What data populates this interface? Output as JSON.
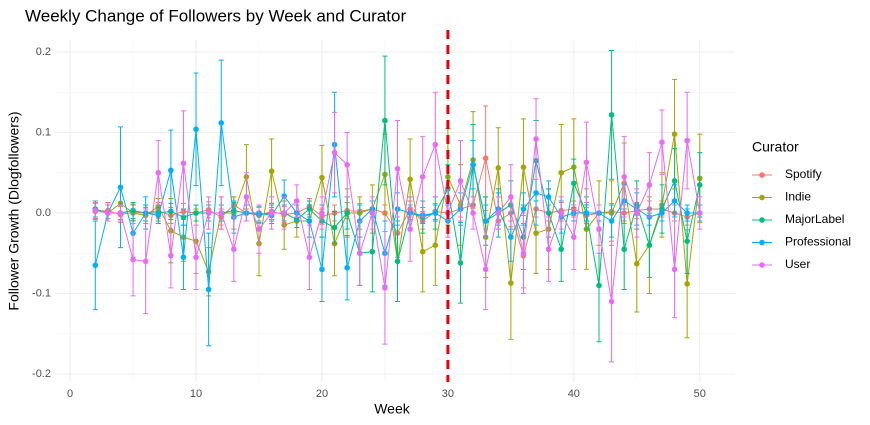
{
  "chart_data": {
    "type": "line",
    "title": "Weekly Change of Followers by Week and Curator",
    "xlabel": "Week",
    "ylabel": "Follower Growth (Dlogfollowers)",
    "legend_title": "Curator",
    "legend": "right",
    "grid": true,
    "vline": 30,
    "vline_color": "#e8000b",
    "xlim": [
      -1.2,
      52.8
    ],
    "ylim": [
      -0.21,
      0.215
    ],
    "xticks": [
      0,
      10,
      20,
      30,
      40,
      50
    ],
    "yticks": [
      -0.2,
      -0.1,
      {
        "value": 0,
        "label": "0.0"
      },
      0.1,
      0.2
    ],
    "x": [
      2,
      3,
      4,
      5,
      6,
      7,
      8,
      9,
      10,
      11,
      12,
      13,
      14,
      15,
      16,
      17,
      18,
      19,
      20,
      21,
      22,
      23,
      24,
      25,
      26,
      27,
      28,
      29,
      30,
      31,
      32,
      33,
      34,
      35,
      36,
      37,
      38,
      39,
      40,
      41,
      42,
      43,
      44,
      45,
      46,
      47,
      48,
      49,
      50
    ],
    "series": [
      {
        "name": "Spotify",
        "color": "#F8766D",
        "values": [
          0.002,
          0.003,
          -0.002,
          0.001,
          0.0,
          0.003,
          -0.003,
          0.002,
          0.0,
          0.004,
          -0.005,
          0.01,
          0.0,
          -0.003,
          0.002,
          -0.002,
          0.0,
          0.008,
          -0.004,
          0.0,
          0.003,
          0.002,
          0.005,
          0.0,
          -0.025,
          0.005,
          -0.01,
          0.002,
          0.0,
          0.005,
          0.01,
          0.068,
          -0.01,
          0.0,
          -0.053,
          0.005,
          0.0,
          0.003,
          0.005,
          -0.003,
          0.0,
          0.002,
          0.0,
          0.003,
          0.005,
          0.005,
          0.0,
          -0.005,
          0.0
        ],
        "errors": [
          0.01,
          0.01,
          0.01,
          0.01,
          0.01,
          0.01,
          0.01,
          0.01,
          0.01,
          0.01,
          0.01,
          0.01,
          0.01,
          0.01,
          0.01,
          0.01,
          0.01,
          0.01,
          0.01,
          0.01,
          0.01,
          0.01,
          0.01,
          0.01,
          0.03,
          0.01,
          0.01,
          0.01,
          0.01,
          0.01,
          0.01,
          0.065,
          0.01,
          0.01,
          0.04,
          0.01,
          0.01,
          0.01,
          0.01,
          0.01,
          0.01,
          0.01,
          0.01,
          0.01,
          0.01,
          0.01,
          0.01,
          0.01,
          0.01
        ]
      },
      {
        "name": "Indie",
        "color": "#A3A500",
        "values": [
          0.003,
          0.0,
          0.012,
          0.0,
          -0.003,
          0.008,
          -0.022,
          -0.03,
          -0.035,
          -0.073,
          0.0,
          0.0,
          0.045,
          -0.038,
          0.052,
          -0.015,
          -0.01,
          -0.01,
          0.044,
          -0.038,
          0.0,
          0.0,
          0.005,
          0.048,
          -0.06,
          0.042,
          -0.048,
          -0.04,
          0.045,
          0.01,
          0.066,
          -0.03,
          0.056,
          -0.087,
          0.057,
          -0.025,
          -0.02,
          0.05,
          0.057,
          -0.02,
          0.0,
          0.0,
          0.037,
          -0.063,
          -0.04,
          0.01,
          0.098,
          -0.088,
          0.043
        ],
        "errors": [
          0.01,
          0.01,
          0.02,
          0.01,
          0.01,
          0.01,
          0.04,
          0.03,
          0.04,
          0.03,
          0.02,
          0.02,
          0.04,
          0.04,
          0.04,
          0.03,
          0.02,
          0.02,
          0.04,
          0.04,
          0.03,
          0.02,
          0.03,
          0.05,
          0.05,
          0.05,
          0.05,
          0.05,
          0.06,
          0.05,
          0.06,
          0.05,
          0.05,
          0.07,
          0.06,
          0.05,
          0.05,
          0.06,
          0.06,
          0.05,
          0.04,
          0.04,
          0.05,
          0.06,
          0.06,
          0.04,
          0.068,
          0.067,
          0.055
        ]
      },
      {
        "name": "MajorLabel",
        "color": "#00BF7D",
        "values": [
          0.005,
          0.0,
          0.0,
          0.003,
          0.0,
          0.0,
          0.002,
          -0.005,
          0.0,
          0.0,
          0.0,
          0.003,
          0.0,
          -0.002,
          0.0,
          0.0,
          -0.008,
          0.005,
          -0.01,
          -0.018,
          0.0,
          -0.05,
          -0.048,
          0.115,
          -0.06,
          0.0,
          -0.005,
          0.0,
          0.03,
          -0.062,
          0.06,
          -0.01,
          0.0,
          0.01,
          -0.03,
          0.065,
          0.0,
          -0.045,
          0.037,
          0.0,
          -0.09,
          0.122,
          -0.045,
          0.01,
          -0.04,
          0.005,
          0.04,
          -0.035,
          0.035
        ],
        "errors": [
          0.01,
          0.01,
          0.01,
          0.01,
          0.01,
          0.01,
          0.01,
          0.01,
          0.01,
          0.01,
          0.01,
          0.01,
          0.01,
          0.01,
          0.01,
          0.01,
          0.01,
          0.01,
          0.02,
          0.02,
          0.02,
          0.04,
          0.05,
          0.08,
          0.05,
          0.02,
          0.02,
          0.02,
          0.03,
          0.05,
          0.05,
          0.03,
          0.03,
          0.03,
          0.04,
          0.05,
          0.03,
          0.04,
          0.03,
          0.02,
          0.07,
          0.08,
          0.05,
          0.03,
          0.04,
          0.03,
          0.04,
          0.04,
          0.04
        ]
      },
      {
        "name": "Professional",
        "color": "#00B0F6",
        "values": [
          -0.065,
          0.0,
          0.032,
          -0.025,
          0.0,
          -0.003,
          0.053,
          -0.055,
          0.104,
          -0.095,
          0.112,
          -0.005,
          0.0,
          0.0,
          -0.003,
          0.021,
          0.0,
          -0.01,
          -0.07,
          0.085,
          -0.068,
          -0.01,
          0.005,
          -0.05,
          0.005,
          0.0,
          -0.003,
          0.0,
          -0.01,
          0.005,
          0.06,
          -0.01,
          0.005,
          -0.03,
          0.005,
          0.025,
          0.02,
          -0.005,
          0.0,
          0.0,
          0.0,
          -0.01,
          0.015,
          0.005,
          -0.005,
          0.0,
          0.015,
          0.0,
          0.0
        ],
        "errors": [
          0.055,
          0.01,
          0.075,
          0.03,
          0.02,
          0.01,
          0.05,
          0.04,
          0.07,
          0.07,
          0.078,
          0.02,
          0.01,
          0.01,
          0.01,
          0.02,
          0.01,
          0.02,
          0.04,
          0.065,
          0.04,
          0.02,
          0.01,
          0.04,
          0.02,
          0.01,
          0.01,
          0.01,
          0.02,
          0.02,
          0.03,
          0.02,
          0.02,
          0.03,
          0.02,
          0.04,
          0.02,
          0.02,
          0.01,
          0.01,
          0.01,
          0.02,
          0.02,
          0.02,
          0.01,
          0.01,
          0.02,
          0.01,
          0.01
        ]
      },
      {
        "name": "User",
        "color": "#E76BF3",
        "values": [
          0.003,
          0.0,
          0.0,
          -0.058,
          -0.06,
          0.05,
          -0.053,
          0.062,
          -0.055,
          0.0,
          0.0,
          -0.045,
          0.02,
          -0.02,
          0.0,
          0.0,
          0.015,
          -0.055,
          0.0,
          0.075,
          0.06,
          -0.05,
          0.0,
          -0.093,
          0.055,
          -0.02,
          0.045,
          0.085,
          0.0,
          0.04,
          0.0,
          -0.07,
          0.0,
          0.02,
          -0.05,
          0.092,
          -0.045,
          0.0,
          -0.03,
          0.063,
          -0.02,
          -0.11,
          0.045,
          0.0,
          0.035,
          0.088,
          -0.07,
          0.09,
          0.0
        ],
        "errors": [
          0.01,
          0.01,
          0.01,
          0.045,
          0.065,
          0.04,
          0.04,
          0.065,
          0.04,
          0.02,
          0.02,
          0.04,
          0.03,
          0.03,
          0.02,
          0.02,
          0.02,
          0.04,
          0.02,
          0.05,
          0.04,
          0.04,
          0.02,
          0.07,
          0.06,
          0.04,
          0.05,
          0.065,
          0.03,
          0.05,
          0.02,
          0.05,
          0.02,
          0.04,
          0.05,
          0.05,
          0.04,
          0.02,
          0.04,
          0.05,
          0.03,
          0.075,
          0.05,
          0.03,
          0.04,
          0.04,
          0.06,
          0.06,
          0.02
        ]
      }
    ]
  }
}
